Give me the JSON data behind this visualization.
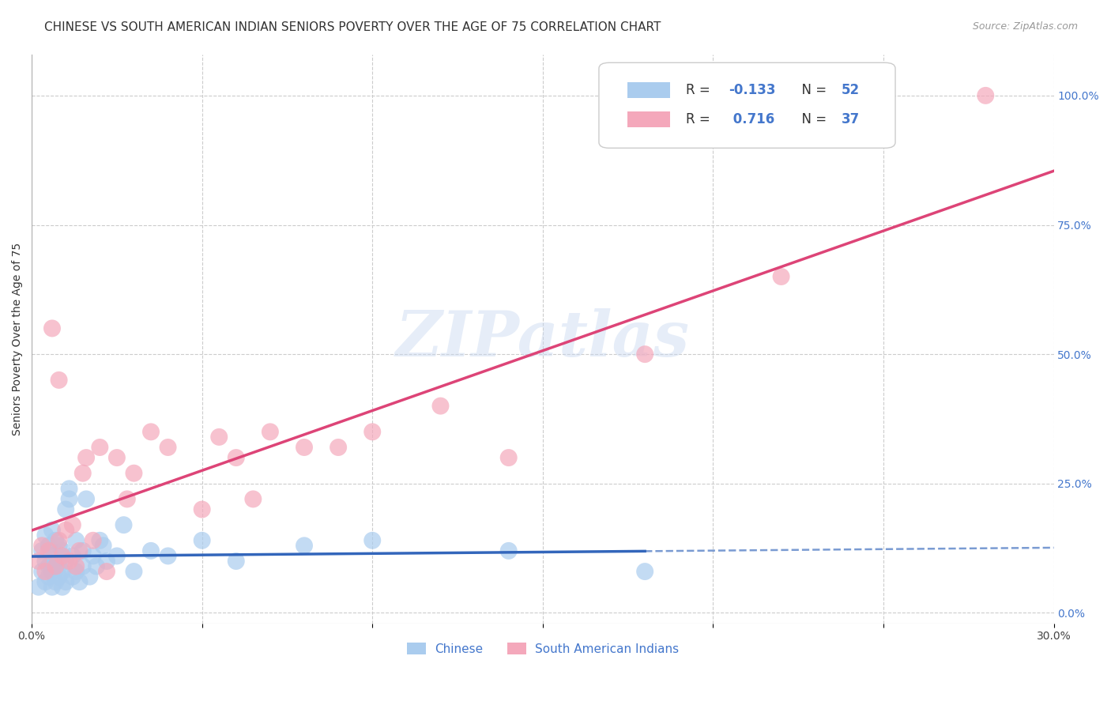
{
  "title": "CHINESE VS SOUTH AMERICAN INDIAN SENIORS POVERTY OVER THE AGE OF 75 CORRELATION CHART",
  "source": "Source: ZipAtlas.com",
  "ylabel": "Seniors Poverty Over the Age of 75",
  "xlim": [
    0.0,
    0.3
  ],
  "ylim": [
    -0.02,
    1.08
  ],
  "ytick_positions_right": [
    0.0,
    0.25,
    0.5,
    0.75,
    1.0
  ],
  "ytick_labels_right": [
    "0.0%",
    "25.0%",
    "50.0%",
    "75.0%",
    "100.0%"
  ],
  "grid_color": "#cccccc",
  "background_color": "#ffffff",
  "watermark": "ZIPatlas",
  "chinese_color": "#aaccee",
  "sa_indian_color": "#f4a8bb",
  "chinese_line_color": "#3366bb",
  "sa_indian_line_color": "#dd4477",
  "chinese_r": -0.133,
  "sa_indian_r": 0.716,
  "legend_n1": 52,
  "legend_n2": 37,
  "chinese_points_x": [
    0.002,
    0.003,
    0.003,
    0.004,
    0.004,
    0.004,
    0.005,
    0.005,
    0.005,
    0.006,
    0.006,
    0.006,
    0.006,
    0.007,
    0.007,
    0.007,
    0.008,
    0.008,
    0.008,
    0.009,
    0.009,
    0.009,
    0.01,
    0.01,
    0.01,
    0.011,
    0.011,
    0.012,
    0.012,
    0.013,
    0.013,
    0.014,
    0.015,
    0.015,
    0.016,
    0.017,
    0.018,
    0.019,
    0.02,
    0.021,
    0.022,
    0.025,
    0.027,
    0.03,
    0.035,
    0.04,
    0.05,
    0.06,
    0.08,
    0.1,
    0.14,
    0.18
  ],
  "chinese_points_y": [
    0.05,
    0.08,
    0.12,
    0.06,
    0.1,
    0.15,
    0.07,
    0.09,
    0.13,
    0.05,
    0.08,
    0.11,
    0.16,
    0.06,
    0.1,
    0.14,
    0.07,
    0.09,
    0.13,
    0.05,
    0.08,
    0.12,
    0.06,
    0.1,
    0.2,
    0.22,
    0.24,
    0.07,
    0.11,
    0.08,
    0.14,
    0.06,
    0.09,
    0.12,
    0.22,
    0.07,
    0.11,
    0.09,
    0.14,
    0.13,
    0.1,
    0.11,
    0.17,
    0.08,
    0.12,
    0.11,
    0.14,
    0.1,
    0.13,
    0.14,
    0.12,
    0.08
  ],
  "sa_indian_points_x": [
    0.002,
    0.003,
    0.004,
    0.005,
    0.006,
    0.007,
    0.008,
    0.008,
    0.009,
    0.01,
    0.011,
    0.012,
    0.013,
    0.014,
    0.015,
    0.016,
    0.018,
    0.02,
    0.022,
    0.025,
    0.028,
    0.03,
    0.035,
    0.04,
    0.05,
    0.055,
    0.06,
    0.065,
    0.07,
    0.08,
    0.09,
    0.1,
    0.12,
    0.14,
    0.18,
    0.22,
    0.28
  ],
  "sa_indian_points_y": [
    0.1,
    0.13,
    0.08,
    0.12,
    0.55,
    0.09,
    0.45,
    0.14,
    0.11,
    0.16,
    0.1,
    0.17,
    0.09,
    0.12,
    0.27,
    0.3,
    0.14,
    0.32,
    0.08,
    0.3,
    0.22,
    0.27,
    0.35,
    0.32,
    0.2,
    0.34,
    0.3,
    0.22,
    0.35,
    0.32,
    0.32,
    0.35,
    0.4,
    0.3,
    0.5,
    0.65,
    1.0
  ],
  "title_fontsize": 11,
  "axis_label_fontsize": 10,
  "tick_fontsize": 10,
  "source_fontsize": 9
}
